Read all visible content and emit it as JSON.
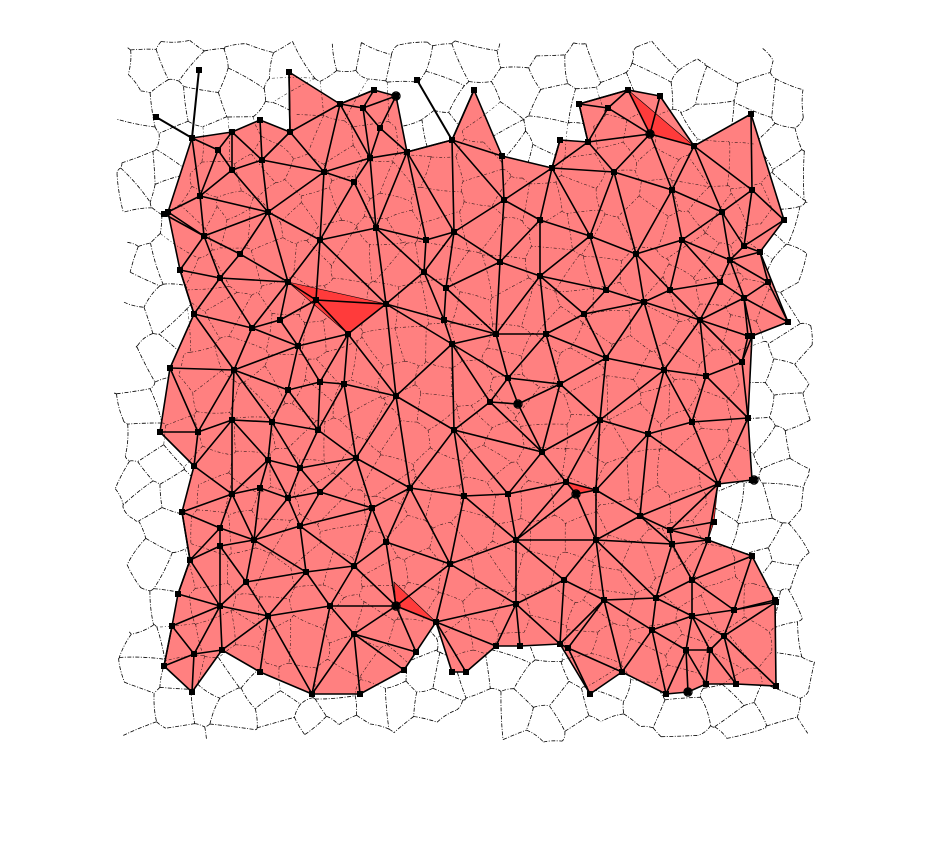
{
  "diagram": {
    "type": "triangulated network over cellular tessellation",
    "colors": {
      "region_fill": "#ff8080",
      "hole_fill": "#ff3b3b",
      "edge": "#000000",
      "node": "#000000",
      "cell_boundary": "#000000",
      "background": "#ffffff"
    },
    "node_marker": "filled square",
    "cell_boundary_style": "dash-dot",
    "printed_text": []
  }
}
